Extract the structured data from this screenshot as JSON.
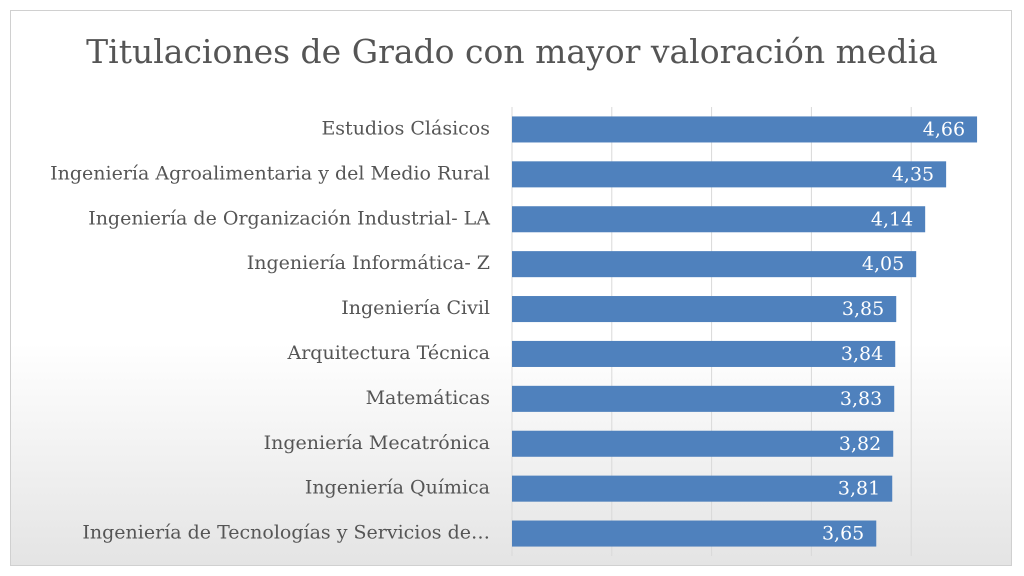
{
  "chart_data": {
    "type": "bar",
    "orientation": "horizontal",
    "title": "Titulaciones de Grado con mayor valoración media",
    "categories": [
      "Estudios Clásicos",
      "Ingeniería Agroalimentaria y del Medio Rural",
      "Ingeniería de Organización Industrial- LA",
      "Ingeniería Informática- Z",
      "Ingeniería Civil",
      "Arquitectura Técnica",
      "Matemáticas",
      "Ingeniería Mecatrónica",
      "Ingeniería Química",
      "Ingeniería de Tecnologías y Servicios de…"
    ],
    "values": [
      4.66,
      4.35,
      4.14,
      4.05,
      3.85,
      3.84,
      3.83,
      3.82,
      3.81,
      3.65
    ],
    "value_labels": [
      "4,66",
      "4,35",
      "4,14",
      "4,05",
      "3,85",
      "3,84",
      "3,83",
      "3,82",
      "3,81",
      "3,65"
    ],
    "color": "#4f81bd",
    "xlim": [
      0,
      5
    ],
    "xticks": [
      0,
      1,
      2,
      3,
      4
    ],
    "grid": true
  }
}
